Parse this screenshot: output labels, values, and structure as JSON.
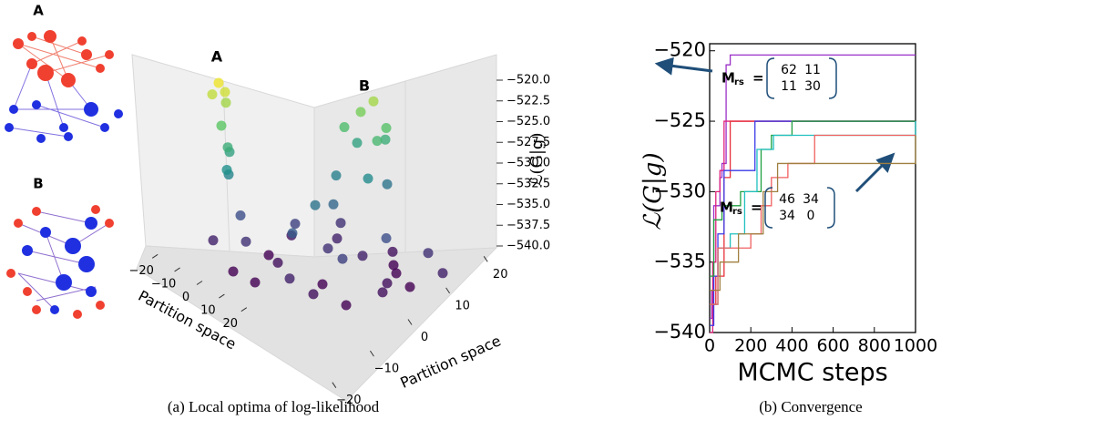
{
  "figure": {
    "diagram_labels": [
      "A",
      "B"
    ]
  },
  "chart_data": [
    {
      "type": "scatter3d",
      "caption": "(a) Local optima of log-likelihood",
      "xlabel": "Partition space",
      "ylabel": "Partition space",
      "zlabel": "ℒ(G|g)",
      "annotations": [
        {
          "text": "A"
        },
        {
          "text": "B"
        }
      ],
      "colormap": "viridis",
      "xlim": [
        -25,
        25
      ],
      "ylim": [
        -25,
        25
      ],
      "zlim": [
        -540,
        -519
      ],
      "xticks": [
        {
          "value": -20,
          "label": "−20"
        },
        {
          "value": -10,
          "label": "−10"
        },
        0,
        10,
        20
      ],
      "yticks": [
        {
          "value": -20,
          "label": "−20"
        },
        {
          "value": -10,
          "label": "−10"
        },
        0,
        10,
        20
      ],
      "zticks": [
        {
          "value": -520,
          "label": "−520.0"
        },
        {
          "value": -522.5,
          "label": "−522.5"
        },
        {
          "value": -525,
          "label": "−525.0"
        },
        {
          "value": -527.5,
          "label": "−527.5"
        },
        {
          "value": -530,
          "label": "−530.0"
        },
        {
          "value": -532.5,
          "label": "−532.5"
        },
        {
          "value": -535,
          "label": "−535.0"
        },
        {
          "value": -537.5,
          "label": "−537.5"
        },
        {
          "value": -540,
          "label": "−540.0"
        }
      ],
      "points": {
        "x": [
          20,
          19,
          21,
          20,
          19,
          18,
          20,
          17,
          19,
          10,
          12,
          8,
          14,
          6,
          11,
          16,
          4,
          13,
          9,
          -20,
          -15,
          -10,
          -5,
          0,
          5,
          10,
          15,
          20,
          -18,
          -12,
          -8,
          3,
          8,
          12,
          -3,
          0,
          18,
          -20,
          6,
          -6,
          14,
          -14,
          2,
          -16,
          16,
          -2,
          -10,
          10,
          0
        ],
        "y": [
          -15,
          -14,
          -16,
          -13,
          -15,
          -14,
          -12,
          -15,
          -13,
          20,
          18,
          22,
          15,
          18,
          24,
          20,
          14,
          12,
          23,
          -10,
          5,
          -18,
          15,
          0,
          -10,
          10,
          -5,
          5,
          18,
          -5,
          10,
          20,
          -20,
          0,
          -12,
          18,
          -18,
          0,
          6,
          -6,
          14,
          12,
          -2,
          -16,
          -12,
          8,
          20,
          -15,
          -20
        ],
        "z": [
          -519.5,
          -520.5,
          -521,
          -522,
          -524.5,
          -527,
          -528,
          -529.5,
          -530.5,
          -522,
          -523.5,
          -525,
          -525.5,
          -526,
          -527,
          -528,
          -530,
          -531,
          -532,
          -540,
          -539,
          -538,
          -540,
          -537,
          -539,
          -538,
          -540,
          -539,
          -538,
          -536,
          -535,
          -539,
          -540,
          -536,
          -534,
          -540,
          -538,
          -539,
          -533,
          -540,
          -537,
          -540,
          -532,
          -539,
          -535,
          -538,
          -537,
          -537,
          -540
        ]
      }
    },
    {
      "type": "line",
      "drawstyle": "steps-post",
      "caption": "(b) Convergence",
      "xlabel": "MCMC steps",
      "ylabel": "ℒ(G|g)",
      "xlim": [
        0,
        1000
      ],
      "ylim": [
        -540,
        -519.5
      ],
      "xticks": [
        0,
        200,
        400,
        600,
        800,
        1000
      ],
      "yticks": [
        {
          "value": -540,
          "label": "−540"
        },
        {
          "value": -535,
          "label": "−535"
        },
        {
          "value": -530,
          "label": "−530"
        },
        {
          "value": -525,
          "label": "−525"
        },
        {
          "value": -520,
          "label": "−520"
        }
      ],
      "annotations": [
        {
          "label": "M",
          "subscript": "rs",
          "sign": "=",
          "matrix": [
            [
              62,
              11
            ],
            [
              11,
              30
            ]
          ]
        },
        {
          "label": "M",
          "subscript": "rs",
          "sign": "=",
          "matrix": [
            [
              46,
              34
            ],
            [
              34,
              0
            ]
          ]
        }
      ],
      "series": [
        {
          "color": "#9b30c8",
          "x": [
            0,
            10,
            20,
            50,
            60,
            80,
            100,
            1000
          ],
          "values": [
            -539,
            -537,
            -531,
            -529,
            -528,
            -521,
            -520.3,
            -520.3
          ]
        },
        {
          "color": "#e0207a",
          "x": [
            0,
            15,
            30,
            50,
            70,
            1000
          ],
          "values": [
            -540,
            -535,
            -530,
            -528.5,
            -525,
            -525
          ]
        },
        {
          "color": "#e8303a",
          "x": [
            0,
            30,
            70,
            100,
            1000
          ],
          "values": [
            -538,
            -536,
            -529,
            -525,
            -525
          ]
        },
        {
          "color": "#3a3ae8",
          "x": [
            0,
            20,
            40,
            70,
            200,
            220,
            1000
          ],
          "values": [
            -539.5,
            -536,
            -533,
            -528.5,
            -528.5,
            -525,
            -525
          ]
        },
        {
          "color": "#20a040",
          "x": [
            0,
            20,
            60,
            150,
            250,
            300,
            400,
            1000
          ],
          "values": [
            -536,
            -532,
            -531,
            -530,
            -527,
            -526,
            -525,
            -525
          ]
        },
        {
          "color": "#20c0c0",
          "x": [
            0,
            40,
            100,
            170,
            230,
            310,
            900,
            1000
          ],
          "values": [
            -538,
            -534,
            -533,
            -530,
            -527,
            -526,
            -526,
            -525
          ]
        },
        {
          "color": "#f06060",
          "x": [
            0,
            40,
            200,
            250,
            300,
            380,
            510,
            1000
          ],
          "values": [
            -538,
            -534,
            -533,
            -531,
            -529,
            -528,
            -526,
            -526
          ]
        },
        {
          "color": "#a08040",
          "x": [
            0,
            50,
            140,
            200,
            260,
            330,
            1000
          ],
          "values": [
            -537,
            -535,
            -533,
            -533,
            -530,
            -528,
            -526
          ]
        }
      ]
    }
  ]
}
